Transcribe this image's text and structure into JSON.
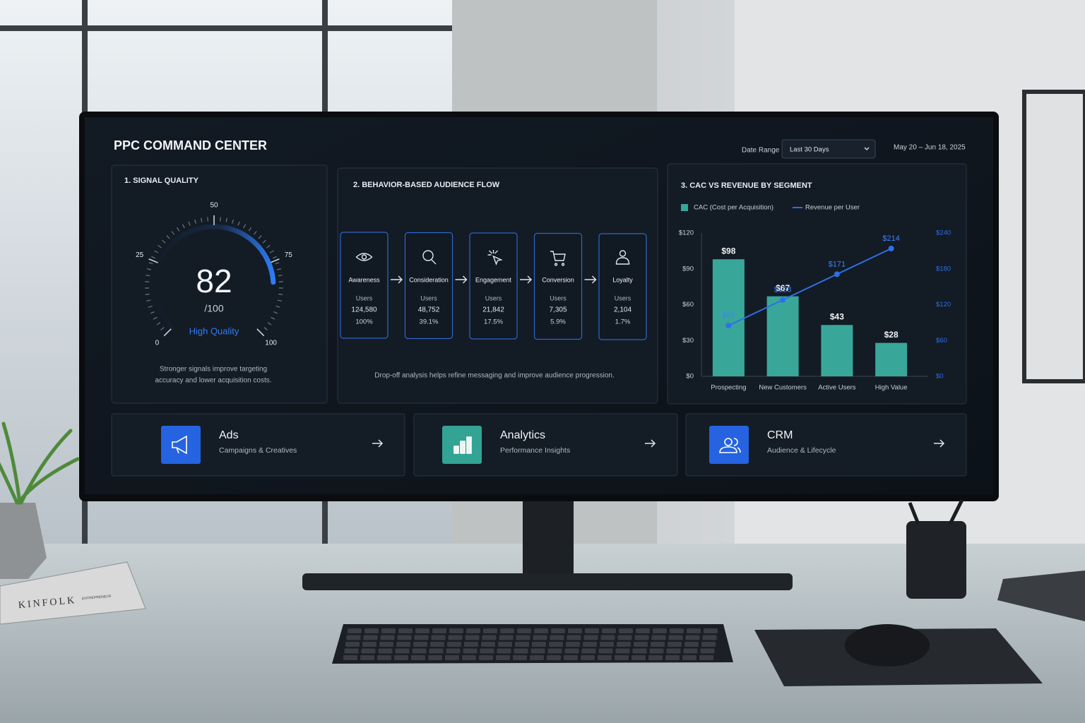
{
  "header": {
    "title": "PPC COMMAND CENTER",
    "date_range_label": "Date Range",
    "date_range_value": "Last 30 Days",
    "dates": "May 20 – Jun 18, 2025"
  },
  "signal_quality": {
    "title": "1. SIGNAL QUALITY",
    "score": 82,
    "score_max": "/100",
    "status": "High Quality",
    "gauge_ticks": [
      0,
      25,
      50,
      75,
      100
    ],
    "note_lines": [
      "Stronger signals improve targeting",
      "accuracy and lower acquisition costs."
    ]
  },
  "audience_flow": {
    "title": "2. BEHAVIOR-BASED AUDIENCE FLOW",
    "stages": [
      {
        "name": "Awareness",
        "label": "Users",
        "users": "124,580",
        "share": "100%"
      },
      {
        "name": "Consideration",
        "label": "Users",
        "users": "48,752",
        "share": "39.1%"
      },
      {
        "name": "Engagement",
        "label": "Users",
        "users": "21,842",
        "share": "17.5%"
      },
      {
        "name": "Conversion",
        "label": "Users",
        "users": "7,305",
        "share": "5.9%"
      },
      {
        "name": "Loyalty",
        "label": "Users",
        "users": "2,104",
        "share": "1.7%"
      }
    ],
    "note": "Drop-off analysis helps refine messaging and improve audience progression."
  },
  "chart_data": {
    "type": "bar",
    "title": "3. CAC VS REVENUE BY SEGMENT",
    "categories": [
      "Prospecting",
      "New Customers",
      "Active Users",
      "High Value"
    ],
    "series": [
      {
        "name": "CAC (Cost per Acquisition)",
        "color": "#38a79a",
        "values": [
          98,
          67,
          43,
          28
        ],
        "value_labels": [
          "$98",
          "$67",
          "$43",
          "$28"
        ]
      },
      {
        "name": "Revenue per User",
        "type": "line",
        "axis": "y2",
        "color": "#2f6fe6",
        "values": [
          85,
          128,
          171,
          214
        ],
        "value_labels": [
          "$85",
          "$128",
          "$171",
          "$214"
        ]
      }
    ],
    "ylim": [
      0,
      120
    ],
    "yticks": [
      {
        "value": 0,
        "label": "$0"
      },
      {
        "value": 30,
        "label": "$30"
      },
      {
        "value": 60,
        "label": "$60"
      },
      {
        "value": 90,
        "label": "$90"
      },
      {
        "value": 120,
        "label": "$120"
      }
    ],
    "y2lim": [
      0,
      240
    ],
    "y2ticks": [
      {
        "value": 0,
        "label": "$0"
      },
      {
        "value": 60,
        "label": "$60"
      },
      {
        "value": 120,
        "label": "$120"
      },
      {
        "value": 180,
        "label": "$180"
      },
      {
        "value": 240,
        "label": "$240"
      }
    ],
    "grid": false,
    "legend": "top-left"
  },
  "nav": [
    {
      "title": "Ads",
      "subtitle": "Campaigns & Creatives",
      "color": "#2563e0"
    },
    {
      "title": "Analytics",
      "subtitle": "Performance Insights",
      "color": "#33a394"
    },
    {
      "title": "CRM",
      "subtitle": "Audience & Lifecycle",
      "color": "#2563e0"
    }
  ],
  "scene": {
    "book_title": "KINFOLK",
    "book_subtitle": "ENTREPRENEUR"
  }
}
